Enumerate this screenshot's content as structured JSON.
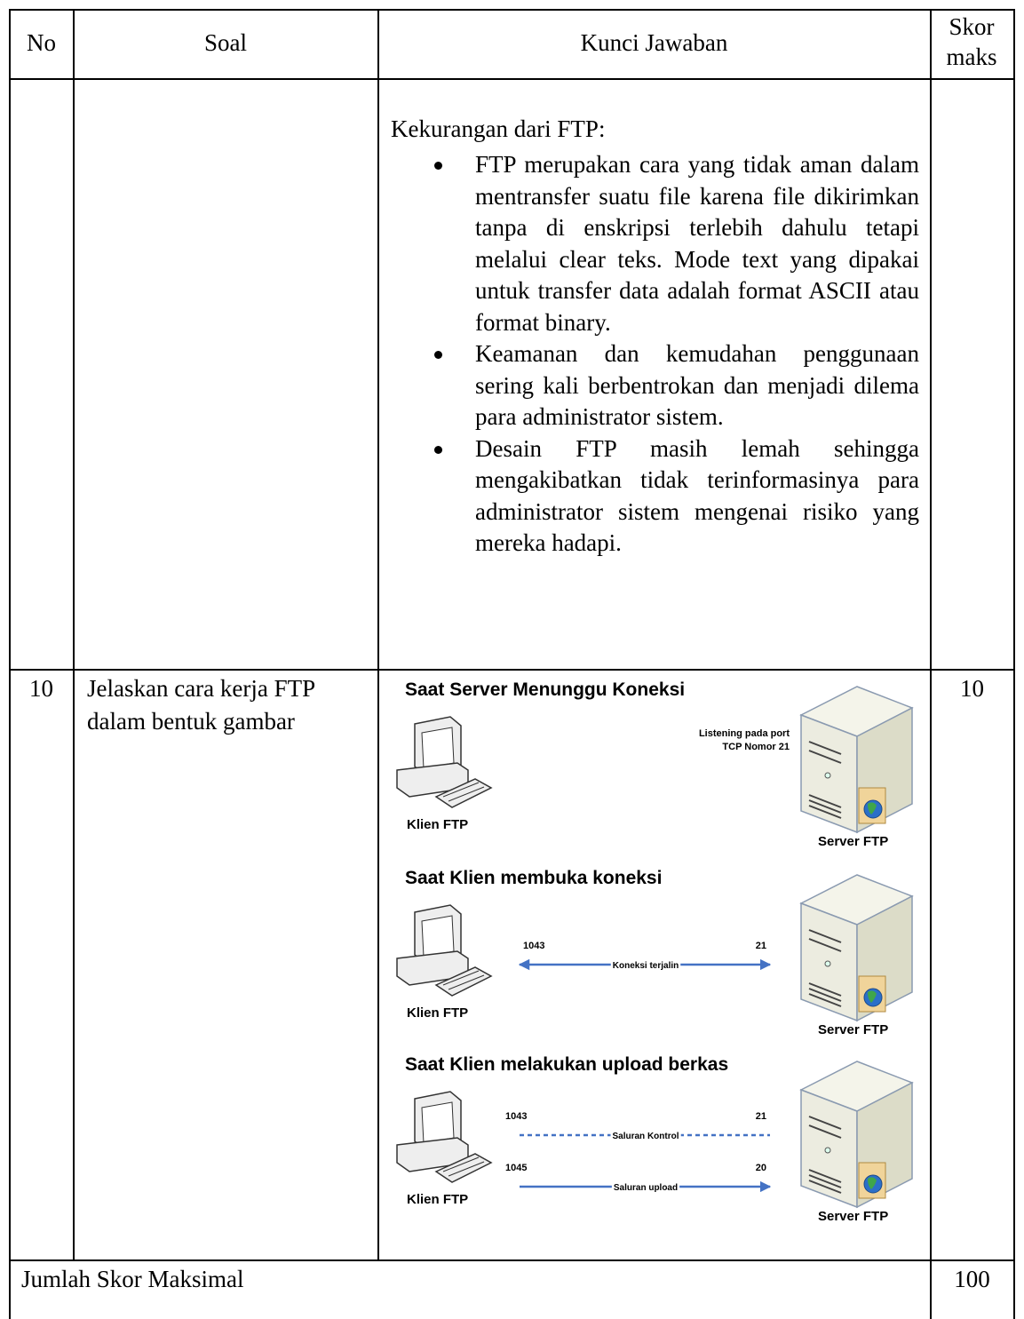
{
  "table": {
    "headers": [
      "No",
      "Soal",
      "Kunci Jawaban",
      "Skor maks"
    ],
    "rows": [
      {
        "answer": {
          "intro": "Kekurangan dari FTP:",
          "bullets": [
            "FTP merupakan cara yang tidak aman dalam mentransfer suatu file karena file dikirimkan tanpa di enskripsi terlebih dahulu tetapi melalui clear teks. Mode text yang dipakai untuk transfer data adalah format ASCII atau format binary.",
            "Keamanan dan kemudahan penggunaan sering kali berbentrokan dan menjadi dilema para administrator sistem.",
            "Desain FTP masih lemah sehingga mengakibatkan tidak terinformasinya para administrator sistem mengenai risiko yang mereka hadapi."
          ]
        }
      },
      {
        "no": "10",
        "question": "Jelaskan cara kerja FTP dalam bentuk gambar",
        "score": "10",
        "diagram": {
          "panels": [
            {
              "title": "Saat Server Menunggu Koneksi",
              "client": "Klien FTP",
              "server": "Server FTP",
              "note": [
                "Listening pada port",
                "TCP Nomor 21"
              ]
            },
            {
              "title": "Saat Klien membuka koneksi",
              "client": "Klien FTP",
              "server": "Server FTP",
              "connections": [
                {
                  "left": "1043",
                  "right": "21",
                  "label": "Koneksi terjalin",
                  "style": "solid"
                }
              ]
            },
            {
              "title": "Saat Klien melakukan upload berkas",
              "client": "Klien FTP",
              "server": "Server FTP",
              "connections": [
                {
                  "left": "1043",
                  "right": "21",
                  "label": "Saluran Kontrol",
                  "style": "dashed"
                },
                {
                  "left": "1045",
                  "right": "20",
                  "label": "Saluran upload",
                  "style": "solid"
                }
              ]
            }
          ]
        }
      }
    ],
    "footer": {
      "label": "Jumlah Skor Maksimal",
      "score": "100"
    }
  }
}
